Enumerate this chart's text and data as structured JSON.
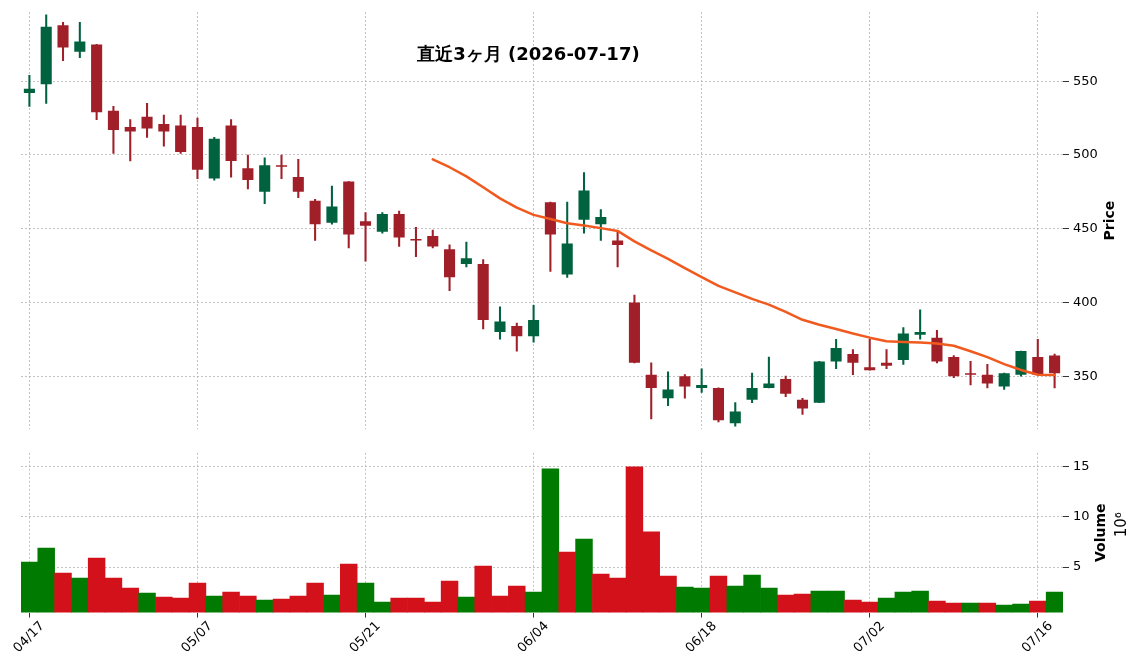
{
  "chart_data": [
    {
      "type": "candlestick",
      "title": "直近3ヶ月 (2026-07-17)",
      "ylabel": "Price",
      "categories": [
        null,
        null,
        null,
        null,
        null,
        null,
        null,
        null,
        null,
        null,
        null,
        null,
        null,
        null,
        null,
        null,
        null,
        null,
        null,
        null,
        null,
        null,
        null,
        null,
        null,
        null,
        null,
        null,
        null,
        null,
        null,
        null,
        null,
        null,
        null,
        null,
        null,
        null,
        null,
        null,
        null,
        null,
        null,
        null,
        null,
        null,
        null,
        null,
        null,
        null,
        null,
        null,
        null,
        null,
        null,
        null,
        null,
        null,
        null,
        null,
        null,
        null
      ],
      "ohlc": [
        [
          542,
          554,
          533,
          545
        ],
        [
          548,
          595,
          535,
          587
        ],
        [
          588,
          590,
          564,
          573
        ],
        [
          570,
          590,
          566,
          577
        ],
        [
          575,
          575,
          524,
          529
        ],
        [
          530,
          533,
          501,
          517
        ],
        [
          519,
          524,
          496,
          516
        ],
        [
          526,
          535,
          512,
          518
        ],
        [
          521,
          527,
          506,
          516
        ],
        [
          520,
          527,
          501,
          502
        ],
        [
          519,
          525,
          484,
          490
        ],
        [
          484,
          512,
          483,
          511
        ],
        [
          520,
          524,
          485,
          496
        ],
        [
          491,
          500,
          477,
          483
        ],
        [
          475,
          498,
          467,
          493
        ],
        [
          493,
          500,
          484,
          492
        ],
        [
          485,
          497,
          471,
          475
        ],
        [
          469,
          470,
          442,
          453
        ],
        [
          454,
          479,
          453,
          465
        ],
        [
          482,
          482,
          437,
          446
        ],
        [
          455,
          461,
          428,
          452
        ],
        [
          448,
          461,
          447,
          460
        ],
        [
          460,
          462,
          438,
          444
        ],
        [
          443,
          451,
          431,
          442
        ],
        [
          445,
          449,
          437,
          438
        ],
        [
          436,
          439,
          408,
          417
        ],
        [
          426,
          441,
          424,
          430
        ],
        [
          426,
          429,
          382,
          388
        ],
        [
          380,
          397,
          375,
          387
        ],
        [
          384,
          386,
          367,
          377
        ],
        [
          377,
          398,
          373,
          388
        ],
        [
          468,
          468,
          421,
          446
        ],
        [
          419,
          468,
          417,
          440
        ],
        [
          456,
          488,
          447,
          476
        ],
        [
          453,
          463,
          442,
          458
        ],
        [
          442,
          448,
          424,
          439
        ],
        [
          400,
          405,
          359,
          359
        ],
        [
          351,
          359,
          321,
          342
        ],
        [
          335,
          353,
          330,
          341
        ],
        [
          350,
          351,
          335,
          343
        ],
        [
          342,
          355,
          339,
          344
        ],
        [
          342,
          342,
          319,
          320
        ],
        [
          318,
          332,
          316,
          326
        ],
        [
          334,
          352,
          332,
          342
        ],
        [
          342,
          363,
          342,
          345
        ],
        [
          348,
          350,
          336,
          338
        ],
        [
          334,
          335,
          324,
          328
        ],
        [
          332,
          360,
          332,
          360
        ],
        [
          360,
          375,
          355,
          369
        ],
        [
          365,
          368,
          351,
          359
        ],
        [
          356,
          375,
          354,
          354
        ],
        [
          359,
          368,
          355,
          357
        ],
        [
          361,
          383,
          358,
          379
        ],
        [
          378,
          395,
          375,
          380
        ],
        [
          376,
          381,
          359,
          360
        ],
        [
          363,
          364,
          349,
          350
        ],
        [
          352,
          360,
          344,
          351
        ],
        [
          351,
          358,
          342,
          345
        ],
        [
          343,
          352,
          341,
          352
        ],
        [
          351,
          367,
          350,
          367
        ],
        [
          363,
          375,
          351,
          351
        ],
        [
          364,
          365,
          342,
          352
        ]
      ],
      "colors": [
        "#00623e",
        "#00623e",
        "#a01f28",
        "#00623e",
        "#a01f28",
        "#a01f28",
        "#a01f28",
        "#a01f28",
        "#a01f28",
        "#a01f28",
        "#a01f28",
        "#00623e",
        "#a01f28",
        "#a01f28",
        "#00623e",
        "#a01f28",
        "#a01f28",
        "#a01f28",
        "#00623e",
        "#a01f28",
        "#a01f28",
        "#00623e",
        "#a01f28",
        "#a01f28",
        "#a01f28",
        "#a01f28",
        "#00623e",
        "#a01f28",
        "#00623e",
        "#a01f28",
        "#00623e",
        "#a01f28",
        "#00623e",
        "#00623e",
        "#00623e",
        "#a01f28",
        "#a01f28",
        "#a01f28",
        "#00623e",
        "#a01f28",
        "#00623e",
        "#a01f28",
        "#00623e",
        "#00623e",
        "#00623e",
        "#a01f28",
        "#a01f28",
        "#00623e",
        "#00623e",
        "#a01f28",
        "#a01f28",
        "#a01f28",
        "#00623e",
        "#00623e",
        "#a01f28",
        "#a01f28",
        "#a01f28",
        "#a01f28",
        "#00623e",
        "#00623e",
        "#a01f28",
        "#a01f28"
      ],
      "series": [
        {
          "type": "line",
          "color": "#f15a1f",
          "values": [
            null,
            null,
            null,
            null,
            null,
            null,
            null,
            null,
            null,
            null,
            null,
            null,
            null,
            null,
            null,
            null,
            null,
            null,
            null,
            null,
            null,
            null,
            null,
            null,
            497,
            491.7,
            485.5,
            478.1,
            470.6,
            464.3,
            459.4,
            456.6,
            453.7,
            452.2,
            450.4,
            448.5,
            441.4,
            435.3,
            429.6,
            423.3,
            417.1,
            411.2,
            406.8,
            402.4,
            398.5,
            393.6,
            388.2,
            384.9,
            382,
            378.9,
            376.1,
            373.7,
            373.2,
            372.8,
            372.1,
            370.6,
            366.9,
            362.9,
            358.1,
            354.2,
            350.9,
            350.7
          ]
        }
      ],
      "ylim": [
        314,
        597
      ],
      "yticks": [
        350,
        400,
        450,
        500,
        550
      ],
      "grid": true,
      "tick_labels": "y"
    },
    {
      "type": "bar",
      "ylabel": "Volume",
      "annotations": [
        "10⁶"
      ],
      "categories": [
        "04/17",
        null,
        null,
        null,
        null,
        null,
        null,
        null,
        null,
        null,
        "05/07",
        null,
        null,
        null,
        null,
        null,
        null,
        null,
        null,
        null,
        "05/21",
        null,
        null,
        null,
        null,
        null,
        null,
        null,
        null,
        null,
        "06/04",
        null,
        null,
        null,
        null,
        null,
        null,
        null,
        null,
        null,
        "06/18",
        null,
        null,
        null,
        null,
        null,
        null,
        null,
        null,
        null,
        "07/02",
        null,
        null,
        null,
        null,
        null,
        null,
        null,
        null,
        null,
        "07/16",
        null
      ],
      "values": [
        5.5,
        6.9,
        4.4,
        3.9,
        5.9,
        3.9,
        2.9,
        2.4,
        2.0,
        1.9,
        3.4,
        2.1,
        2.5,
        2.1,
        1.7,
        1.8,
        2.1,
        3.4,
        2.2,
        5.3,
        3.4,
        1.5,
        1.9,
        1.9,
        1.5,
        3.6,
        2.0,
        5.1,
        2.1,
        3.1,
        2.5,
        14.8,
        6.5,
        7.8,
        4.3,
        3.9,
        15.0,
        8.5,
        4.1,
        3.0,
        2.9,
        4.1,
        3.1,
        4.2,
        2.9,
        2.2,
        2.3,
        2.6,
        2.6,
        1.7,
        1.5,
        1.9,
        2.5,
        2.6,
        1.6,
        1.4,
        1.4,
        1.4,
        1.2,
        1.3,
        1.6,
        2.5
      ],
      "colors": [
        "#007a00",
        "#007a00",
        "#d3111b",
        "#007a00",
        "#d3111b",
        "#d3111b",
        "#d3111b",
        "#007a00",
        "#d3111b",
        "#d3111b",
        "#d3111b",
        "#007a00",
        "#d3111b",
        "#d3111b",
        "#007a00",
        "#d3111b",
        "#d3111b",
        "#d3111b",
        "#007a00",
        "#d3111b",
        "#007a00",
        "#007a00",
        "#d3111b",
        "#d3111b",
        "#d3111b",
        "#d3111b",
        "#007a00",
        "#d3111b",
        "#d3111b",
        "#d3111b",
        "#007a00",
        "#007a00",
        "#d3111b",
        "#007a00",
        "#d3111b",
        "#d3111b",
        "#d3111b",
        "#d3111b",
        "#d3111b",
        "#007a00",
        "#007a00",
        "#d3111b",
        "#007a00",
        "#007a00",
        "#007a00",
        "#d3111b",
        "#d3111b",
        "#007a00",
        "#007a00",
        "#d3111b",
        "#d3111b",
        "#007a00",
        "#007a00",
        "#007a00",
        "#d3111b",
        "#d3111b",
        "#007a00",
        "#d3111b",
        "#007a00",
        "#007a00",
        "#d3111b",
        "#007a00"
      ],
      "ylim": [
        0.45,
        16.4
      ],
      "yticks": [
        5,
        10,
        15
      ],
      "grid": true
    }
  ]
}
